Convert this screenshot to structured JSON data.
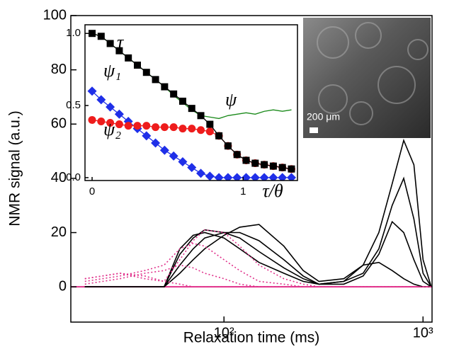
{
  "chart_data": [
    {
      "type": "line",
      "x_label": "Relaxation time (ms)",
      "y_label": "NMR signal (a.u.)",
      "log_x": true,
      "xlim": [
        17,
        1110
      ],
      "ylim": [
        -13,
        100
      ],
      "xticks": [
        {
          "value": 100,
          "label": "10²"
        },
        {
          "value": 1000,
          "label": "10³"
        }
      ],
      "yticks": [
        0,
        20,
        40,
        60,
        80,
        100
      ],
      "zero_line_color": "#e0308a",
      "x": [
        20,
        30,
        40,
        50,
        60,
        70,
        80,
        100,
        120,
        150,
        200,
        250,
        300,
        400,
        500,
        600,
        700,
        800,
        900,
        1000,
        1100
      ],
      "series": [
        {
          "color": "#000000",
          "dashed": false,
          "values": [
            0,
            0,
            0,
            0,
            5,
            10,
            14,
            19,
            22,
            23,
            15,
            6,
            2,
            3,
            8,
            20,
            38,
            54,
            45,
            10,
            0
          ]
        },
        {
          "color": "#000000",
          "dashed": false,
          "values": [
            0,
            0,
            0,
            0,
            8,
            14,
            18,
            20,
            20,
            17,
            10,
            4,
            1,
            2,
            5,
            14,
            30,
            40,
            25,
            5,
            0
          ]
        },
        {
          "color": "#000000",
          "dashed": false,
          "values": [
            0,
            0,
            0,
            0,
            12,
            18,
            21,
            20,
            18,
            13,
            7,
            3,
            1,
            1,
            4,
            12,
            24,
            20,
            10,
            2,
            0
          ]
        },
        {
          "color": "#000000",
          "dashed": false,
          "values": [
            0,
            0,
            0,
            0,
            14,
            19,
            20,
            18,
            14,
            9,
            5,
            2,
            1,
            2,
            8,
            9,
            6,
            3,
            1,
            0,
            0
          ]
        },
        {
          "color": "#e0308a",
          "dashed": true,
          "values": [
            3,
            5,
            3,
            2,
            10,
            17,
            21,
            20,
            15,
            8,
            3,
            1,
            0,
            0,
            0,
            0,
            0,
            0,
            0,
            0,
            0
          ]
        },
        {
          "color": "#e0308a",
          "dashed": true,
          "values": [
            2,
            4,
            6,
            8,
            14,
            16,
            15,
            10,
            6,
            2,
            1,
            0,
            0,
            0,
            0,
            0,
            0,
            0,
            0,
            0,
            0
          ]
        },
        {
          "color": "#e0308a",
          "dashed": true,
          "values": [
            1,
            3,
            5,
            6,
            8,
            7,
            5,
            3,
            1,
            0,
            0,
            0,
            0,
            0,
            0,
            0,
            0,
            0,
            0,
            0,
            0
          ]
        },
        {
          "color": "#e0308a",
          "dashed": true,
          "values": [
            3,
            5,
            4,
            2,
            1,
            0,
            0,
            0,
            0,
            0,
            0,
            0,
            0,
            0,
            0,
            0,
            0,
            0,
            0,
            0,
            0
          ]
        }
      ]
    },
    {
      "type": "line",
      "x_label": "τ/θ",
      "log_x": false,
      "xlim": [
        -0.047,
        1.36
      ],
      "ylim": [
        -0.02,
        1.06
      ],
      "xticks": [
        0,
        1
      ],
      "yticks": [
        {
          "value": 0,
          "label": "0.0"
        },
        0.5,
        {
          "value": 1,
          "label": "1.0"
        }
      ],
      "image_scale_label": "200 μm",
      "x": [
        0,
        0.06,
        0.12,
        0.18,
        0.24,
        0.3,
        0.36,
        0.42,
        0.48,
        0.54,
        0.6,
        0.66,
        0.72,
        0.78,
        0.84,
        0.9,
        0.96,
        1.02,
        1.08,
        1.14,
        1.2,
        1.26,
        1.32
      ],
      "series": [
        {
          "name": "τ",
          "color": "#1a8a1a",
          "marker": "none",
          "values": [
            1.0,
            0.98,
            0.93,
            0.88,
            0.83,
            0.78,
            0.73,
            0.68,
            0.63,
            0.57,
            0.52,
            0.47,
            0.43,
            0.42,
            0.41,
            0.43,
            0.44,
            0.45,
            0.44,
            0.46,
            0.47,
            0.46,
            0.47
          ]
        },
        {
          "name": "ψ₁",
          "color": "#1f2fe8",
          "marker": "diamond",
          "values": [
            0.6,
            0.54,
            0.49,
            0.44,
            0.39,
            0.34,
            0.29,
            0.24,
            0.19,
            0.15,
            0.11,
            0.07,
            0.03,
            0.01,
            0,
            0,
            0,
            0,
            0,
            0,
            0,
            0,
            0
          ]
        },
        {
          "name": "ψ₂",
          "color": "#ee1c1c",
          "marker": "circle",
          "values": [
            0.4,
            0.39,
            0.38,
            0.37,
            0.36,
            0.36,
            0.36,
            0.35,
            0.35,
            0.35,
            0.34,
            0.34,
            0.33,
            0.32,
            0.29,
            0.22,
            0.16,
            0.12,
            0.1,
            0.09,
            0.08,
            0.07,
            0.06
          ]
        },
        {
          "name": "ψ",
          "color": "#000000",
          "marker": "square",
          "values": [
            1.0,
            0.98,
            0.93,
            0.88,
            0.83,
            0.78,
            0.73,
            0.68,
            0.63,
            0.58,
            0.53,
            0.48,
            0.43,
            0.37,
            0.29,
            0.22,
            0.16,
            0.12,
            0.1,
            0.09,
            0.08,
            0.07,
            0.06
          ]
        }
      ]
    }
  ]
}
